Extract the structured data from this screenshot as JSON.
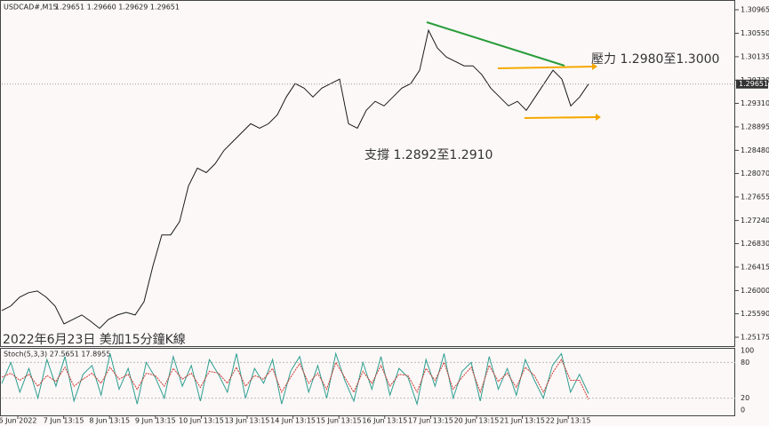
{
  "chart_data": [
    {
      "type": "line",
      "symbol": "USDCAD#,M15",
      "ohlc": "1.29651 1.29660 1.29629 1.29651",
      "annotations": [
        "壓力 1.2980至1.3000",
        "支撐 1.2892至1.2910",
        "2022年6月23日 美加15分鐘K線"
      ],
      "current_price": 1.29651,
      "color": "#1a1a1a",
      "values": [
        1.25647,
        1.25725,
        1.25883,
        1.25962,
        1.25993,
        1.25883,
        1.25725,
        1.2541,
        1.2549,
        1.25568,
        1.25458,
        1.25332,
        1.2549,
        1.25568,
        1.25615,
        1.25568,
        1.25804,
        1.26434,
        1.26984,
        1.26984,
        1.2722,
        1.2785,
        1.28165,
        1.28086,
        1.28243,
        1.28479,
        1.28636,
        1.28794,
        1.28951,
        1.28872,
        1.28951,
        1.29108,
        1.29423,
        1.29659,
        1.2958,
        1.29423,
        1.2958,
        1.29659,
        1.29738,
        1.28951,
        1.28872,
        1.29187,
        1.29345,
        1.29266,
        1.29423,
        1.2958,
        1.29659,
        1.29895,
        1.30603,
        1.30288,
        1.30131,
        1.30052,
        1.29974,
        1.29974,
        1.29816,
        1.2958,
        1.29423,
        1.29266,
        1.29345,
        1.29187,
        1.29423,
        1.29659,
        1.29895,
        1.29738,
        1.29266,
        1.29423,
        1.29651
      ],
      "ylim": [
        1.25018,
        1.31122
      ],
      "yticks": [
        1.30965,
        {
          "value": 1.3055,
          "label": "1.30550"
        },
        1.30135,
        {
          "value": 1.2972,
          "label": "1.29720"
        },
        {
          "value": 1.2931,
          "label": "1.29310"
        },
        1.28895,
        {
          "value": 1.2848,
          "label": "1.28480"
        },
        {
          "value": 1.2807,
          "label": "1.28070"
        },
        1.27655,
        {
          "value": 1.2724,
          "label": "1.27240"
        },
        {
          "value": 1.2683,
          "label": "1.26830"
        },
        1.26415,
        {
          "value": 1.26,
          "label": "1.26000"
        },
        {
          "value": 1.2559,
          "label": "1.25590"
        },
        1.25175
      ],
      "x_labels": [
        "6 Jun 2022",
        "7 Jun 13:15",
        "8 Jun 13:15",
        "9 Jun 13:15",
        "10 Jun 13:15",
        "13 Jun 13:15",
        "14 Jun 13:15",
        "15 Jun 13:15",
        "16 Jun 13:15",
        "17 Jun 13:15",
        "20 Jun 13:15",
        "21 Jun 13:15",
        "22 Jun 13:15"
      ]
    },
    {
      "type": "oscillator",
      "title": "Stoch(5,3,3) 27.5651 17.8955",
      "series": [
        {
          "color": "#2e9e8f",
          "values": [
            45,
            80,
            30,
            70,
            20,
            85,
            40,
            90,
            15,
            60,
            75,
            25,
            95,
            35,
            70,
            10,
            80,
            55,
            20,
            90,
            40,
            75,
            15,
            85,
            60,
            30,
            95,
            20,
            70,
            45,
            85,
            10,
            65,
            90,
            30,
            75,
            20,
            95,
            50,
            15,
            80,
            35,
            90,
            25,
            70,
            55,
            10,
            85,
            40,
            95,
            20,
            65,
            80,
            15,
            90,
            35,
            70,
            25,
            85,
            50,
            20,
            75,
            95,
            30,
            60,
            27.5651
          ]
        },
        {
          "color": "#d0342c",
          "values": [
            55,
            62,
            50,
            60,
            40,
            58,
            48,
            72,
            40,
            52,
            62,
            45,
            72,
            52,
            60,
            35,
            62,
            58,
            40,
            70,
            52,
            62,
            38,
            65,
            62,
            45,
            72,
            40,
            58,
            52,
            70,
            30,
            55,
            78,
            45,
            62,
            35,
            80,
            55,
            30,
            65,
            45,
            75,
            40,
            60,
            58,
            30,
            70,
            50,
            80,
            35,
            55,
            72,
            30,
            75,
            48,
            62,
            38,
            72,
            58,
            30,
            62,
            85,
            50,
            50,
            17.8955
          ]
        }
      ],
      "ylim": [
        0,
        100
      ],
      "yticks": [
        100,
        80,
        20,
        0
      ]
    }
  ]
}
